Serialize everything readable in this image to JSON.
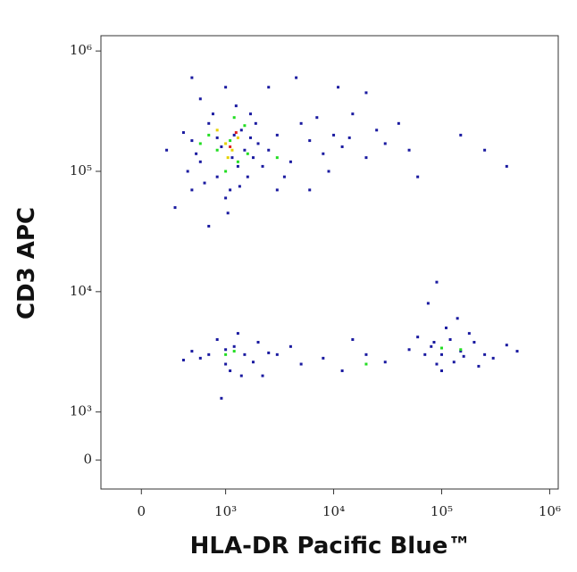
{
  "chart_data": {
    "type": "scatter",
    "x_label": "HLA-DR Pacific Blue™",
    "y_label": "CD3 APC",
    "scale": "biexponential",
    "xlim": [
      -480,
      1200000
    ],
    "ylim": [
      -600,
      1340000
    ],
    "xticks": [
      0,
      {
        "value": 1000,
        "label": "10³"
      },
      {
        "value": 10000,
        "label": "10⁴"
      },
      {
        "value": 100000,
        "label": "10⁵"
      },
      {
        "value": 1000000,
        "label": "10⁶"
      }
    ],
    "yticks": [
      0,
      {
        "value": 1000,
        "label": "10³"
      },
      {
        "value": 10000,
        "label": "10⁴"
      },
      {
        "value": 100000,
        "label": "10⁵"
      },
      {
        "value": 1000000,
        "label": "10⁶"
      }
    ],
    "series": [
      {
        "color": "#1a1aa0",
        "x": [
          700,
          900,
          1200,
          1500,
          800,
          1100,
          600,
          1300,
          1700,
          950,
          750,
          1400,
          1800,
          650,
          1000,
          1250,
          550,
          2000,
          850,
          1600,
          1050,
          700,
          1900,
          1150,
          500,
          2200,
          1350,
          900,
          1700,
          600,
          2500,
          3000,
          4000,
          5000,
          6000,
          8000,
          10000,
          12000,
          15000,
          20000,
          25000,
          3500,
          7000,
          9000,
          14000,
          30000,
          40000,
          4500,
          2500,
          11000,
          20000,
          50000,
          60000,
          150000,
          250000,
          400000,
          6000,
          3000,
          1000,
          600,
          400,
          300,
          800,
          800,
          1000,
          1200,
          900,
          1500,
          1100,
          700,
          1300,
          1800,
          600,
          2000,
          1000,
          1400,
          500,
          2500,
          950,
          3000,
          5000,
          4000,
          8000,
          12000,
          15000,
          20000,
          30000,
          2200,
          80000,
          100000,
          120000,
          150000,
          90000,
          200000,
          70000,
          110000,
          130000,
          60000,
          250000,
          180000,
          300000,
          100000,
          50000,
          400000,
          140000,
          220000,
          85000,
          160000,
          500000,
          75000,
          90000
        ],
        "y": [
          120000,
          90000,
          200000,
          150000,
          250000,
          70000,
          180000,
          110000,
          300000,
          160000,
          80000,
          220000,
          130000,
          140000,
          60000,
          350000,
          100000,
          170000,
          300000,
          90000,
          45000,
          400000,
          250000,
          130000,
          210000,
          110000,
          75000,
          190000,
          190000,
          70000,
          150000,
          200000,
          120000,
          250000,
          180000,
          140000,
          200000,
          160000,
          300000,
          130000,
          220000,
          90000,
          280000,
          100000,
          190000,
          170000,
          250000,
          600000,
          500000,
          500000,
          450000,
          150000,
          90000,
          200000,
          150000,
          110000,
          70000,
          70000,
          500000,
          600000,
          50000,
          150000,
          35000,
          3000,
          2500,
          3500,
          4000,
          3000,
          2200,
          2800,
          4500,
          2600,
          3200,
          3800,
          3300,
          2000,
          2700,
          3100,
          1300,
          3000,
          2500,
          3500,
          2800,
          2200,
          4000,
          3000,
          2600,
          2000,
          3500,
          3000,
          4000,
          3200,
          2500,
          3800,
          3000,
          5000,
          2600,
          4200,
          3000,
          4500,
          2800,
          2200,
          3300,
          3600,
          6000,
          2400,
          3800,
          2900,
          3200,
          8000,
          12000
        ]
      },
      {
        "color": "#22dd22",
        "x": [
          900,
          1100,
          1300,
          800,
          1500,
          1000,
          1200,
          700,
          1600,
          1000,
          1200,
          100000,
          150000,
          20000,
          3000
        ],
        "y": [
          150000,
          180000,
          120000,
          200000,
          240000,
          100000,
          280000,
          170000,
          140000,
          3000,
          3200,
          3400,
          3300,
          2500,
          130000
        ]
      },
      {
        "color": "#e6d200",
        "x": [
          1000,
          1150,
          900,
          1300,
          1050
        ],
        "y": [
          170000,
          150000,
          220000,
          190000,
          130000
        ]
      },
      {
        "color": "#e02020",
        "x": [
          1100,
          1250
        ],
        "y": [
          160000,
          210000
        ]
      }
    ]
  }
}
